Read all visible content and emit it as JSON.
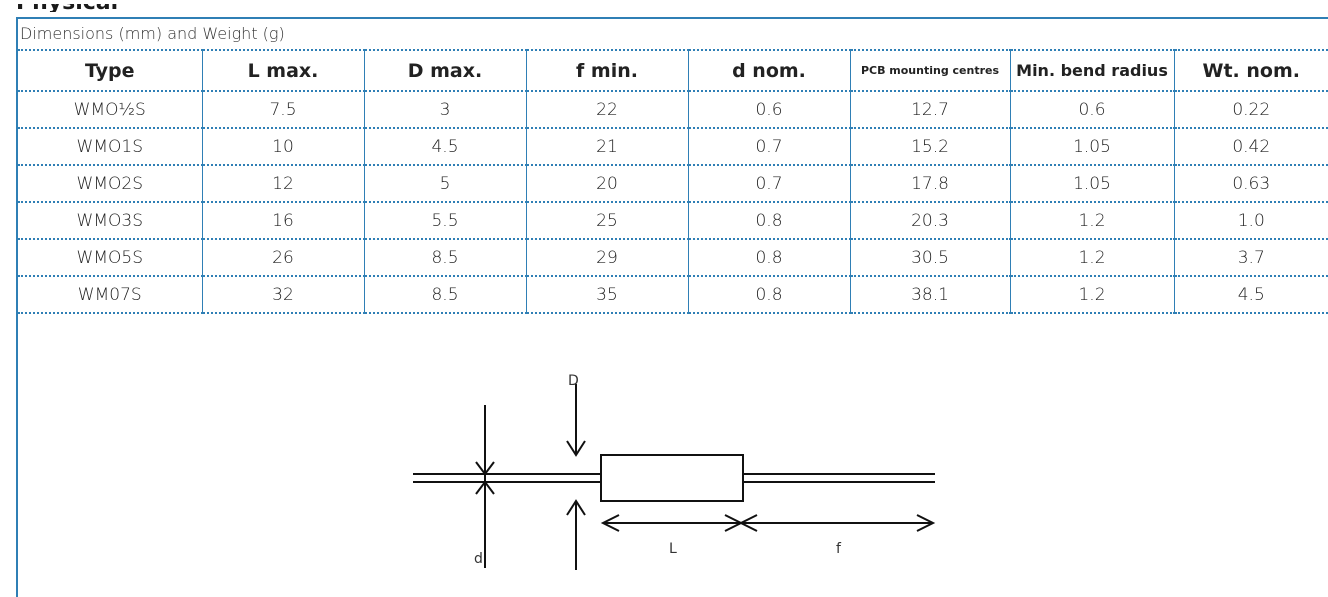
{
  "heading": "Physical",
  "caption": "Dimensions (mm) and Weight (g)",
  "columns": [
    "Type",
    "L max.",
    "D max.",
    "f min.",
    "d nom.",
    "PCB mounting centres",
    "Min. bend radius",
    "Wt. nom."
  ],
  "rows": [
    [
      "WMO½S",
      "7.5",
      "3",
      "22",
      "0.6",
      "12.7",
      "0.6",
      "0.22"
    ],
    [
      "WMO1S",
      "10",
      "4.5",
      "21",
      "0.7",
      "15.2",
      "1.05",
      "0.42"
    ],
    [
      "WMO2S",
      "12",
      "5",
      "20",
      "0.7",
      "17.8",
      "1.05",
      "0.63"
    ],
    [
      "WMO3S",
      "16",
      "5.5",
      "25",
      "0.8",
      "20.3",
      "1.2",
      "1.0"
    ],
    [
      "WMO5S",
      "26",
      "8.5",
      "29",
      "0.8",
      "30.5",
      "1.2",
      "3.7"
    ],
    [
      "WM07S",
      "32",
      "8.5",
      "35",
      "0.8",
      "38.1",
      "1.2",
      "4.5"
    ]
  ],
  "diagram": {
    "label_D": "D",
    "label_d": "d",
    "label_L": "L",
    "label_f": "f"
  },
  "colors": {
    "rule": "#2f7fb5"
  }
}
